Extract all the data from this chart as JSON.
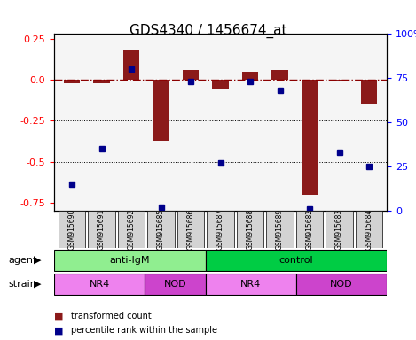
{
  "title": "GDS4340 / 1456674_at",
  "samples": [
    "GSM915690",
    "GSM915691",
    "GSM915692",
    "GSM915685",
    "GSM915686",
    "GSM915687",
    "GSM915688",
    "GSM915689",
    "GSM915682",
    "GSM915683",
    "GSM915684"
  ],
  "transformed_count": [
    -0.02,
    -0.02,
    0.18,
    -0.37,
    0.06,
    -0.06,
    0.05,
    0.06,
    -0.7,
    -0.01,
    -0.15
  ],
  "percentile_rank": [
    15,
    35,
    80,
    2,
    73,
    27,
    73,
    68,
    1,
    33,
    25
  ],
  "ylim_left": [
    -0.8,
    0.28
  ],
  "ylim_right": [
    0,
    100
  ],
  "yticks_left": [
    0.25,
    0.0,
    -0.25,
    -0.5,
    -0.75
  ],
  "yticks_right": [
    100,
    75,
    50,
    25,
    0
  ],
  "ytick_right_labels": [
    "100%",
    "75",
    "50",
    "25",
    "0"
  ],
  "agent_groups": [
    {
      "label": "anti-IgM",
      "start": 0,
      "end": 5,
      "color": "#90EE90"
    },
    {
      "label": "control",
      "start": 5,
      "end": 11,
      "color": "#00CC44"
    }
  ],
  "strain_groups": [
    {
      "label": "NR4",
      "start": 0,
      "end": 3,
      "color": "#EE82EE"
    },
    {
      "label": "NOD",
      "start": 3,
      "end": 5,
      "color": "#CC44CC"
    },
    {
      "label": "NR4",
      "start": 5,
      "end": 8,
      "color": "#EE82EE"
    },
    {
      "label": "NOD",
      "start": 8,
      "end": 11,
      "color": "#CC44CC"
    }
  ],
  "bar_color": "#8B1A1A",
  "dot_color": "#00008B",
  "ref_line_color": "#8B0000",
  "background_color": "#F5F5F5",
  "agent_label": "agent",
  "strain_label": "strain",
  "legend_items": [
    {
      "color": "#8B1A1A",
      "label": "transformed count"
    },
    {
      "color": "#00008B",
      "label": "percentile rank within the sample"
    }
  ]
}
